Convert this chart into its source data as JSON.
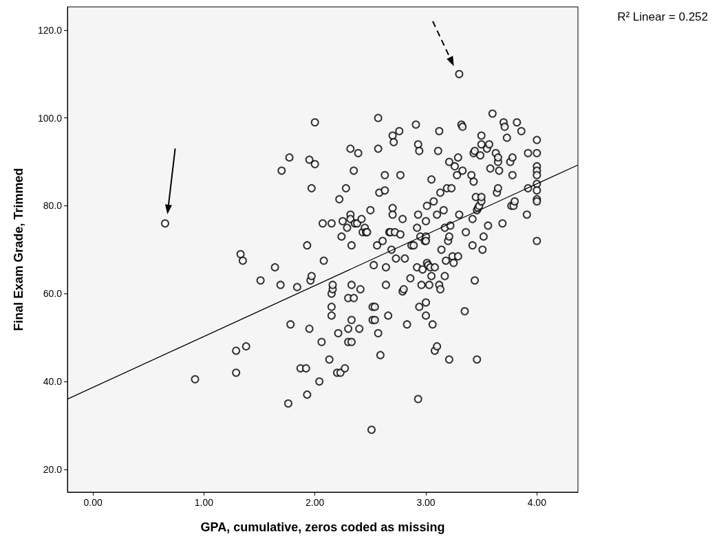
{
  "chart_data": {
    "type": "scatter",
    "xlabel": "GPA, cumulative, zeros coded as missing",
    "ylabel": "Final Exam Grade, Trimmed",
    "annotations": [
      "R² Linear = 0.252"
    ],
    "xlim": [
      -0.23,
      4.37
    ],
    "ylim": [
      14.8,
      125.3
    ],
    "xticks": [
      {
        "value": 0,
        "label": "0.00"
      },
      {
        "value": 1,
        "label": "1.00"
      },
      {
        "value": 2,
        "label": "2.00"
      },
      {
        "value": 3,
        "label": "3.00"
      },
      {
        "value": 4,
        "label": "4.00"
      }
    ],
    "yticks": [
      {
        "value": 20,
        "label": "20.0"
      },
      {
        "value": 40,
        "label": "40.0"
      },
      {
        "value": 60,
        "label": "60.0"
      },
      {
        "value": 80,
        "label": "80.0"
      },
      {
        "value": 100,
        "label": "100.0"
      },
      {
        "value": 120,
        "label": "120.0"
      }
    ],
    "grid": false,
    "series": [
      {
        "marker": "circle",
        "color": "#000000",
        "x": [
          0.65,
          0.92,
          1.29,
          1.29,
          1.33,
          1.35,
          1.38,
          1.51,
          1.64,
          1.69,
          1.7,
          1.77,
          1.76,
          1.78,
          1.84,
          1.87,
          1.92,
          1.93,
          1.93,
          1.95,
          1.95,
          1.96,
          1.97,
          1.97,
          2.0,
          2.0,
          2.04,
          2.06,
          2.07,
          2.08,
          2.13,
          2.15,
          2.16,
          2.16,
          2.15,
          2.15,
          2.15,
          2.2,
          2.21,
          2.22,
          2.23,
          2.24,
          2.25,
          2.27,
          2.28,
          2.29,
          2.3,
          2.3,
          2.3,
          2.32,
          2.32,
          2.32,
          2.33,
          2.33,
          2.33,
          2.33,
          2.35,
          2.35,
          2.36,
          2.38,
          2.39,
          2.4,
          2.41,
          2.42,
          2.43,
          2.45,
          2.46,
          2.47,
          2.5,
          2.51,
          2.52,
          2.52,
          2.53,
          2.54,
          2.54,
          2.56,
          2.57,
          2.57,
          2.57,
          2.58,
          2.59,
          2.61,
          2.63,
          2.63,
          2.64,
          2.64,
          2.66,
          2.67,
          2.68,
          2.69,
          2.7,
          2.7,
          2.7,
          2.71,
          2.72,
          2.73,
          2.76,
          2.77,
          2.77,
          2.79,
          2.79,
          2.8,
          2.81,
          2.83,
          2.86,
          2.87,
          2.89,
          2.91,
          2.92,
          2.92,
          2.93,
          2.93,
          2.93,
          2.94,
          2.94,
          2.95,
          2.96,
          2.97,
          2.99,
          3.0,
          3.0,
          3.0,
          3.0,
          3.0,
          3.01,
          3.01,
          3.02,
          3.03,
          3.04,
          3.05,
          3.05,
          3.06,
          3.07,
          3.08,
          3.08,
          3.1,
          3.1,
          3.11,
          3.12,
          3.12,
          3.13,
          3.13,
          3.14,
          3.16,
          3.17,
          3.17,
          3.18,
          3.19,
          3.2,
          3.21,
          3.21,
          3.21,
          3.22,
          3.23,
          3.24,
          3.25,
          3.26,
          3.28,
          3.29,
          3.29,
          3.3,
          3.3,
          3.32,
          3.33,
          3.33,
          3.35,
          3.36,
          3.41,
          3.42,
          3.42,
          3.43,
          3.43,
          3.44,
          3.44,
          3.45,
          3.46,
          3.46,
          3.47,
          3.48,
          3.49,
          3.5,
          3.5,
          3.5,
          3.5,
          3.51,
          3.52,
          3.55,
          3.56,
          3.57,
          3.58,
          3.6,
          3.63,
          3.64,
          3.65,
          3.65,
          3.65,
          3.66,
          3.69,
          3.7,
          3.71,
          3.73,
          3.76,
          3.77,
          3.78,
          3.78,
          3.79,
          3.8,
          3.82,
          3.86,
          3.91,
          3.92,
          3.92,
          4.0,
          4.0,
          4.0,
          4.0,
          4.0,
          4.0,
          4.0,
          4.0,
          4.0,
          4.0
        ],
        "values": [
          76,
          40.5,
          47,
          42,
          69,
          67.5,
          48,
          63,
          66,
          62,
          88,
          91,
          35,
          53,
          61.5,
          43,
          43,
          37,
          71,
          90.5,
          52,
          63,
          64,
          84,
          99,
          89.5,
          40,
          49,
          76,
          67.5,
          45,
          60,
          61,
          62,
          76,
          57,
          55,
          42,
          51,
          81.5,
          42,
          73,
          76.5,
          43,
          84,
          75,
          49,
          52,
          59,
          78,
          77,
          93,
          71,
          62,
          54,
          49,
          59,
          88,
          76,
          76,
          92,
          52,
          61,
          77,
          74,
          75,
          74,
          74,
          79,
          29,
          54,
          57,
          66.5,
          57,
          54,
          71,
          51,
          100,
          93,
          83,
          46,
          72,
          87,
          83.5,
          62,
          66,
          55,
          74,
          74,
          70,
          79.5,
          78,
          96,
          94.5,
          74,
          68,
          97,
          87,
          73.5,
          77,
          60.5,
          61,
          68,
          53,
          63.5,
          71,
          71,
          98.5,
          75,
          66,
          94,
          78,
          36,
          57,
          92.5,
          73,
          62,
          65.5,
          72,
          73,
          58,
          72,
          55,
          76.5,
          80,
          67,
          66.5,
          62,
          66,
          86,
          64,
          53,
          81,
          47,
          66,
          78,
          48,
          92.5,
          97,
          62,
          61,
          83,
          70,
          79,
          64,
          75,
          67.5,
          84,
          72,
          73,
          45,
          90,
          75.5,
          84,
          68.5,
          67,
          89,
          87,
          68.5,
          91,
          110,
          78,
          98.5,
          98,
          88,
          56,
          74,
          87,
          77,
          71,
          92,
          85.5,
          92.5,
          63,
          82,
          45,
          79,
          79.5,
          80,
          91.5,
          96,
          94,
          81,
          82,
          70,
          73,
          93,
          75.5,
          94,
          88.5,
          101,
          92,
          83,
          90,
          84,
          91,
          88,
          76,
          99,
          98,
          95.5,
          90,
          80,
          87,
          91,
          80,
          81,
          99,
          97,
          78,
          92,
          84,
          95,
          92,
          89,
          88,
          87,
          85,
          83.5,
          81.5,
          81,
          72
        ]
      },
      {
        "type": "line",
        "color": "#000000",
        "x": [
          -0.23,
          4.37
        ],
        "values": [
          36,
          89.3
        ]
      }
    ]
  }
}
